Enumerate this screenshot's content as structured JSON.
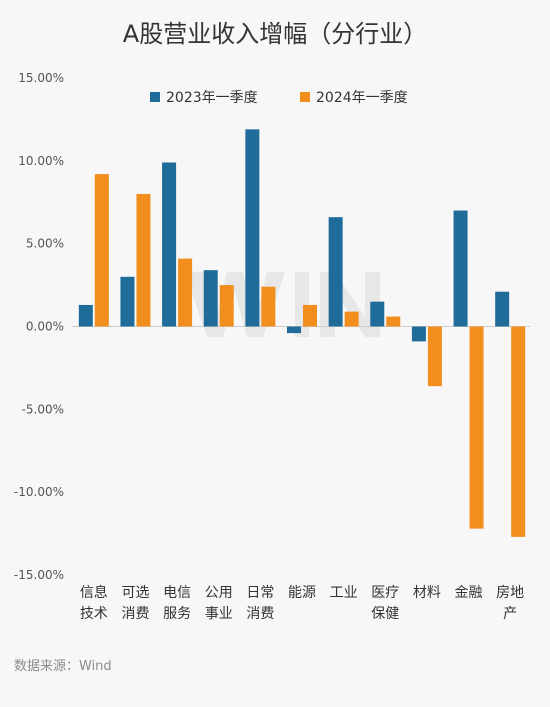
{
  "chart_data": {
    "type": "bar",
    "title": "A股营业收入增幅（分行业）",
    "categories": [
      [
        "信息",
        "技术"
      ],
      [
        "可选",
        "消费"
      ],
      [
        "电信",
        "服务"
      ],
      [
        "公用",
        "事业"
      ],
      [
        "日常",
        "消费"
      ],
      [
        "能源"
      ],
      [
        "工业"
      ],
      [
        "医疗",
        "保健"
      ],
      [
        "材料"
      ],
      [
        "金融"
      ],
      [
        "房地",
        "产"
      ]
    ],
    "series": [
      {
        "name": "2023年一季度",
        "color": "#1f6b99",
        "values": [
          1.3,
          3.0,
          9.9,
          3.4,
          11.9,
          -0.4,
          6.6,
          1.5,
          -0.9,
          7.0,
          2.1
        ]
      },
      {
        "name": "2024年一季度",
        "color": "#f28e1e",
        "values": [
          9.2,
          8.0,
          4.1,
          2.5,
          2.4,
          1.3,
          0.9,
          0.6,
          -3.6,
          -12.2,
          -12.7
        ]
      }
    ],
    "ylim": [
      -15,
      15
    ],
    "yticks": [
      "15.00%",
      "10.00%",
      "5.00%",
      "0.00%",
      "-5.00%",
      "-10.00%",
      "-15.00%"
    ],
    "ytick_values": [
      15,
      10,
      5,
      0,
      -5,
      -10,
      -15
    ],
    "grid": false,
    "legend_position": "top-center"
  },
  "source": "数据来源：Wind"
}
